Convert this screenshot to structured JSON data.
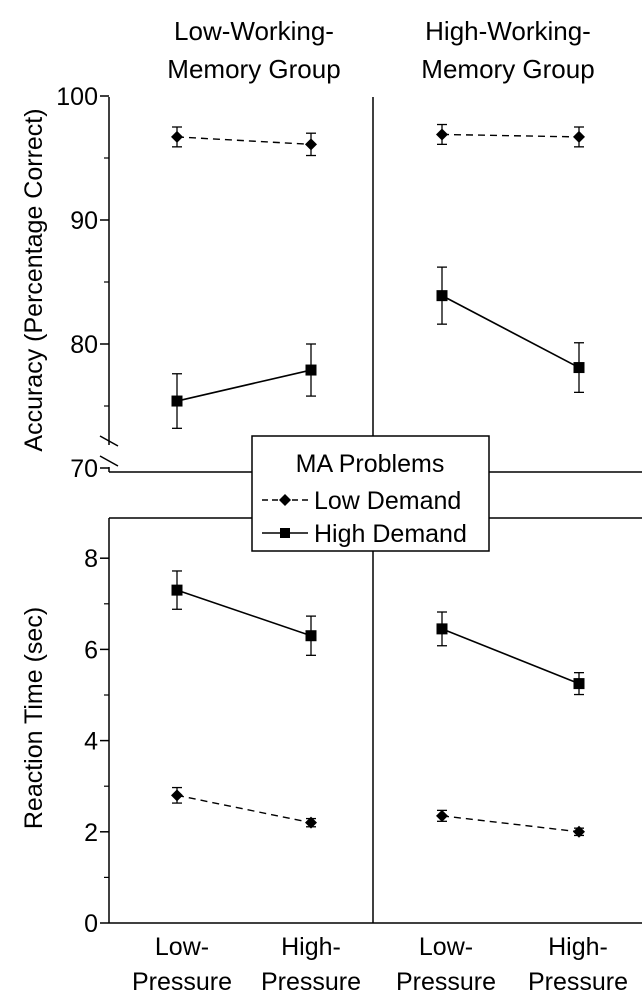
{
  "chart_data": {
    "type": "line",
    "panel_titles": [
      [
        "Low-Working-",
        "Memory Group"
      ],
      [
        "High-Working-",
        "Memory Group"
      ]
    ],
    "categories": [
      [
        "Low-",
        "Pressure"
      ],
      [
        "High-",
        "Pressure"
      ]
    ],
    "legend": {
      "title": "MA Problems",
      "position": "center",
      "entries": [
        "Low Demand",
        "High Demand"
      ]
    },
    "charts": [
      {
        "ylabel": "Accuracy (Percentage Correct)",
        "ylim": [
          70,
          100
        ],
        "yticks": [
          70,
          80,
          90,
          100
        ],
        "axis_break": true,
        "grid": false,
        "panels": [
          {
            "group": "Low-Working-Memory Group",
            "series": [
              {
                "name": "Low Demand",
                "style": "dashed",
                "marker": "diamond",
                "values": [
                  96.7,
                  96.1
                ],
                "error": [
                  0.8,
                  0.9
                ]
              },
              {
                "name": "High Demand",
                "style": "solid",
                "marker": "square",
                "values": [
                  75.4,
                  77.9
                ],
                "error": [
                  2.2,
                  2.1
                ]
              }
            ]
          },
          {
            "group": "High-Working-Memory Group",
            "series": [
              {
                "name": "Low Demand",
                "style": "dashed",
                "marker": "diamond",
                "values": [
                  96.9,
                  96.7
                ],
                "error": [
                  0.8,
                  0.8
                ]
              },
              {
                "name": "High Demand",
                "style": "solid",
                "marker": "square",
                "values": [
                  83.9,
                  78.1
                ],
                "error": [
                  2.3,
                  2.0
                ]
              }
            ]
          }
        ]
      },
      {
        "ylabel": "Reaction Time (sec)",
        "ylim": [
          0,
          9
        ],
        "yticks": [
          0,
          2,
          4,
          6,
          8
        ],
        "grid": false,
        "panels": [
          {
            "group": "Low-Working-Memory Group",
            "series": [
              {
                "name": "Low Demand",
                "style": "dashed",
                "marker": "diamond",
                "values": [
                  2.8,
                  2.2
                ],
                "error": [
                  0.17,
                  0.09
                ]
              },
              {
                "name": "High Demand",
                "style": "solid",
                "marker": "square",
                "values": [
                  7.3,
                  6.3
                ],
                "error": [
                  0.42,
                  0.43
                ]
              }
            ]
          },
          {
            "group": "High-Working-Memory Group",
            "series": [
              {
                "name": "Low Demand",
                "style": "dashed",
                "marker": "diamond",
                "values": [
                  2.35,
                  2.0
                ],
                "error": [
                  0.12,
                  0.08
                ]
              },
              {
                "name": "High Demand",
                "style": "solid",
                "marker": "square",
                "values": [
                  6.45,
                  5.25
                ],
                "error": [
                  0.37,
                  0.24
                ]
              }
            ]
          }
        ]
      }
    ]
  }
}
